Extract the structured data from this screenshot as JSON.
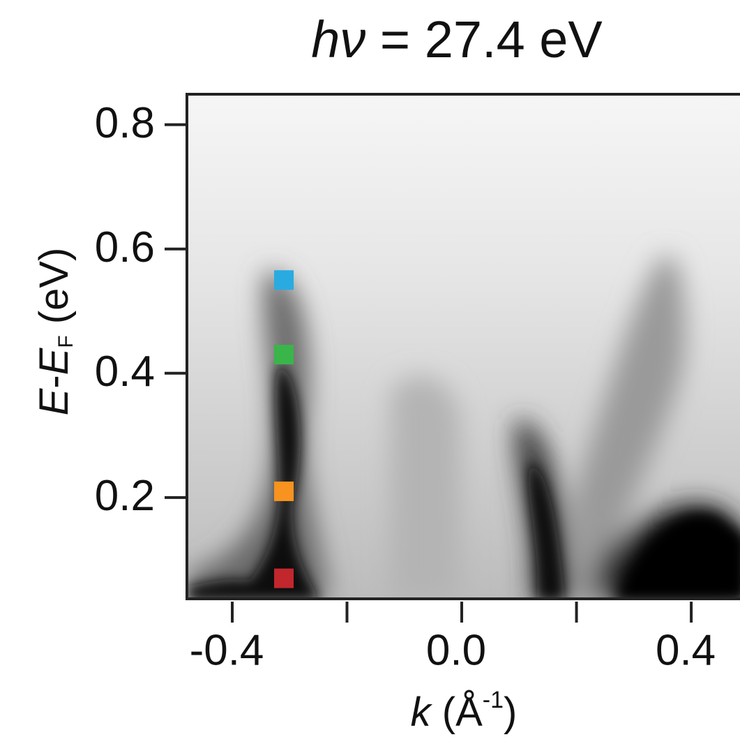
{
  "chart_data": {
    "type": "scatter",
    "title": [
      "hν",
      " = 27.4 eV"
    ],
    "x_label": [
      "k",
      " (Å",
      "-1",
      ")"
    ],
    "y_label": [
      "E",
      "-",
      "E",
      "F",
      " (eV)"
    ],
    "x": [
      -0.31,
      -0.31,
      -0.31,
      -0.31
    ],
    "values": [
      0.55,
      0.43,
      0.21,
      0.07
    ],
    "colors": [
      "#29abe2",
      "#39b54a",
      "#f7931e",
      "#c1272d"
    ],
    "xlim": [
      -0.479,
      0.485
    ],
    "ylim": [
      0.037,
      0.849
    ],
    "xticks": [
      -0.4,
      {
        "value": -0.2,
        "label": null
      },
      {
        "value": 0,
        "label": "0.0"
      },
      {
        "value": 0.2,
        "label": null
      },
      0.4
    ],
    "yticks": [
      0.2,
      0.4,
      0.6,
      0.8
    ]
  }
}
